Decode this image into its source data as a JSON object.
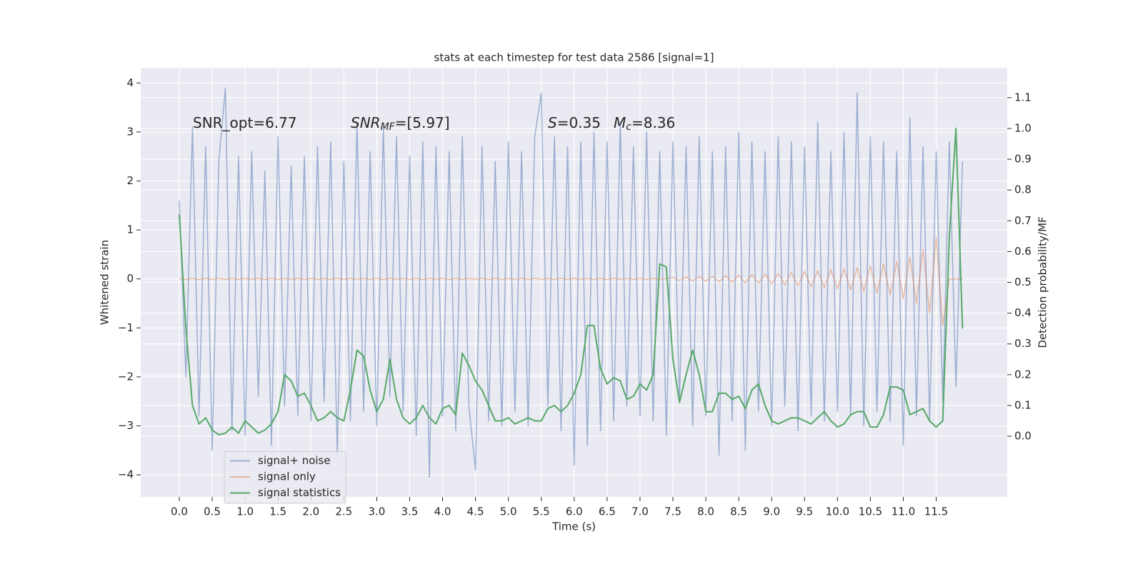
{
  "chart_data": {
    "type": "line",
    "title": "stats at each timestep for test data 2586 [signal=1]",
    "xlabel": "Time (s)",
    "ylabel": "Whitened strain",
    "y2label": "Detection probability/MF",
    "annotations": [
      {
        "text": "SNR_opt=6.77"
      },
      {
        "base": "SNR",
        "sub": "MF",
        "rest": "=[5.97]"
      },
      {
        "base": "S",
        "rest": "=0.35"
      },
      {
        "base": "M",
        "sub": "c",
        "rest": "=8.36"
      }
    ],
    "legend": "lower left",
    "grid": true,
    "xlim": [
      -0.586,
      12.58
    ],
    "ylim": [
      -4.45,
      4.31
    ],
    "y2lim": [
      -0.197,
      1.197
    ],
    "xticks": [
      {
        "value": 0,
        "label": "0.0"
      },
      0.5,
      {
        "value": 1,
        "label": "1.0"
      },
      1.5,
      {
        "value": 2,
        "label": "2.0"
      },
      2.5,
      {
        "value": 3,
        "label": "3.0"
      },
      3.5,
      {
        "value": 4,
        "label": "4.0"
      },
      4.5,
      {
        "value": 5,
        "label": "5.0"
      },
      5.5,
      {
        "value": 6,
        "label": "6.0"
      },
      6.5,
      {
        "value": 7,
        "label": "7.0"
      },
      7.5,
      {
        "value": 8,
        "label": "8.0"
      },
      8.5,
      {
        "value": 9,
        "label": "9.0"
      },
      9.5,
      {
        "value": 10,
        "label": "10.0"
      },
      10.5,
      {
        "value": 11,
        "label": "11.0"
      },
      11.5
    ],
    "yticks": [
      {
        "value": -4,
        "label": "−4"
      },
      {
        "value": -3,
        "label": "−3"
      },
      {
        "value": -2,
        "label": "−2"
      },
      {
        "value": -1,
        "label": "−1"
      },
      0,
      1,
      2,
      3,
      4
    ],
    "y2ticks": [
      {
        "value": 0,
        "label": "0.0"
      },
      0.1,
      0.2,
      0.3,
      0.4,
      0.5,
      0.6,
      0.7,
      0.8,
      0.9,
      {
        "value": 1,
        "label": "1.0"
      },
      1.1
    ],
    "x": [
      0,
      0.1,
      0.2,
      0.3,
      0.4,
      0.5,
      0.6,
      0.7,
      0.8,
      0.9,
      1,
      1.1,
      1.2,
      1.3,
      1.4,
      1.5,
      1.6,
      1.7,
      1.8,
      1.9,
      2,
      2.1,
      2.2,
      2.3,
      2.4,
      2.5,
      2.6,
      2.7,
      2.8,
      2.9,
      3,
      3.1,
      3.2,
      3.3,
      3.4,
      3.5,
      3.6,
      3.7,
      3.8,
      3.9,
      4,
      4.1,
      4.2,
      4.3,
      4.4,
      4.5,
      4.6,
      4.7,
      4.8,
      4.9,
      5,
      5.1,
      5.2,
      5.3,
      5.4,
      5.5,
      5.6,
      5.7,
      5.8,
      5.9,
      6,
      6.1,
      6.2,
      6.3,
      6.4,
      6.5,
      6.6,
      6.7,
      6.8,
      6.9,
      7,
      7.1,
      7.2,
      7.3,
      7.4,
      7.5,
      7.6,
      7.7,
      7.8,
      7.9,
      8,
      8.1,
      8.2,
      8.3,
      8.4,
      8.5,
      8.6,
      8.7,
      8.8,
      8.9,
      9,
      9.1,
      9.2,
      9.3,
      9.4,
      9.5,
      9.6,
      9.7,
      9.8,
      9.9,
      10,
      10.1,
      10.2,
      10.3,
      10.4,
      10.5,
      10.6,
      10.7,
      10.8,
      10.9,
      11,
      11.1,
      11.2,
      11.3,
      11.4,
      11.5,
      11.6,
      11.7,
      11.8,
      11.9
    ],
    "series": [
      {
        "name": "signal+ noise",
        "color": "#4c72b0",
        "values": [
          1.6,
          -2.0,
          3.1,
          -2.8,
          2.7,
          -3.5,
          2.4,
          3.9,
          -3.1,
          2.5,
          -3.2,
          2.6,
          -2.4,
          2.2,
          -3.4,
          2.9,
          -2.6,
          2.3,
          -2.8,
          2.5,
          -2.9,
          2.7,
          -2.5,
          2.8,
          -3.6,
          2.4,
          -2.9,
          3.2,
          -2.7,
          2.6,
          -3.0,
          3.1,
          -2.4,
          2.9,
          -2.7,
          2.5,
          -3.2,
          2.8,
          -4.05,
          2.7,
          -2.8,
          2.6,
          -3.1,
          2.9,
          -2.6,
          -3.9,
          2.7,
          -2.9,
          2.4,
          -3.0,
          2.8,
          -2.7,
          2.6,
          -3.0,
          2.9,
          3.8,
          -2.6,
          2.9,
          -3.1,
          2.7,
          -3.8,
          2.8,
          -3.4,
          3.0,
          -3.1,
          2.8,
          -2.9,
          3.2,
          -2.6,
          2.7,
          -2.8,
          3.0,
          -2.9,
          2.6,
          -3.2,
          2.8,
          -2.5,
          2.7,
          -3.0,
          2.9,
          -2.8,
          2.6,
          -3.6,
          2.7,
          -2.9,
          3.0,
          -3.5,
          2.8,
          -2.7,
          2.6,
          -3.0,
          2.9,
          -2.6,
          2.8,
          -3.1,
          2.7,
          -2.8,
          3.2,
          -2.9,
          2.6,
          -2.7,
          3.0,
          -2.8,
          3.8,
          -3.0,
          2.9,
          -2.7,
          2.8,
          -2.9,
          2.6,
          -3.4,
          3.3,
          -2.8,
          2.7,
          -2.9,
          2.6,
          -2.5,
          2.8,
          -2.2,
          2.4
        ]
      },
      {
        "name": "signal only",
        "color": "#dd8452",
        "values": [
          0.01,
          -0.01,
          0.01,
          -0.01,
          0.01,
          -0.01,
          0.01,
          -0.01,
          0.01,
          -0.01,
          0.01,
          -0.01,
          0.01,
          -0.01,
          0.01,
          -0.01,
          0.01,
          -0.01,
          0.01,
          -0.01,
          0.01,
          -0.01,
          0.01,
          -0.01,
          0.01,
          -0.01,
          0.01,
          -0.01,
          0.01,
          -0.01,
          0.01,
          -0.01,
          0.01,
          -0.01,
          0.01,
          -0.01,
          0.01,
          -0.01,
          0.01,
          -0.01,
          0.01,
          -0.01,
          0.01,
          -0.01,
          0.01,
          -0.01,
          0.01,
          -0.01,
          0.01,
          -0.01,
          0.01,
          -0.01,
          0.01,
          -0.01,
          0.01,
          -0.01,
          0.01,
          -0.01,
          0.01,
          -0.01,
          0.01,
          -0.01,
          0.01,
          -0.01,
          0.01,
          -0.01,
          0.01,
          -0.01,
          0.01,
          -0.01,
          0.01,
          -0.01,
          0.01,
          -0.01,
          0.01,
          0.03,
          -0.03,
          0.04,
          -0.04,
          0.05,
          -0.05,
          0.06,
          -0.06,
          0.07,
          -0.07,
          0.08,
          -0.08,
          0.09,
          -0.09,
          0.1,
          -0.1,
          0.11,
          -0.12,
          0.13,
          -0.14,
          0.15,
          -0.16,
          0.17,
          -0.18,
          0.19,
          -0.2,
          0.21,
          -0.22,
          0.23,
          -0.25,
          0.27,
          -0.29,
          0.31,
          -0.33,
          0.36,
          -0.4,
          0.45,
          -0.5,
          0.6,
          -0.7,
          0.85,
          -0.95,
          0,
          0,
          0
        ]
      },
      {
        "name": "signal statistics",
        "color": "#55a868",
        "axis": "y2",
        "values": [
          0.72,
          0.35,
          0.1,
          0.04,
          0.06,
          0.02,
          0.005,
          0.01,
          0.03,
          0.01,
          0.05,
          0.03,
          0.01,
          0.02,
          0.04,
          0.08,
          0.2,
          0.18,
          0.13,
          0.14,
          0.1,
          0.05,
          0.06,
          0.08,
          0.06,
          0.05,
          0.15,
          0.28,
          0.26,
          0.15,
          0.08,
          0.12,
          0.25,
          0.12,
          0.06,
          0.04,
          0.06,
          0.1,
          0.06,
          0.04,
          0.09,
          0.1,
          0.07,
          0.27,
          0.23,
          0.18,
          0.15,
          0.1,
          0.05,
          0.05,
          0.06,
          0.04,
          0.05,
          0.06,
          0.05,
          0.05,
          0.09,
          0.1,
          0.08,
          0.1,
          0.14,
          0.2,
          0.36,
          0.36,
          0.22,
          0.17,
          0.19,
          0.18,
          0.12,
          0.13,
          0.17,
          0.15,
          0.2,
          0.56,
          0.55,
          0.25,
          0.11,
          0.2,
          0.28,
          0.2,
          0.08,
          0.08,
          0.14,
          0.14,
          0.12,
          0.13,
          0.09,
          0.15,
          0.17,
          0.1,
          0.05,
          0.04,
          0.05,
          0.06,
          0.06,
          0.05,
          0.04,
          0.06,
          0.08,
          0.05,
          0.03,
          0.04,
          0.07,
          0.08,
          0.08,
          0.03,
          0.03,
          0.07,
          0.16,
          0.16,
          0.15,
          0.07,
          0.08,
          0.09,
          0.05,
          0.03,
          0.05,
          0.65,
          1.0,
          0.35
        ]
      }
    ]
  }
}
